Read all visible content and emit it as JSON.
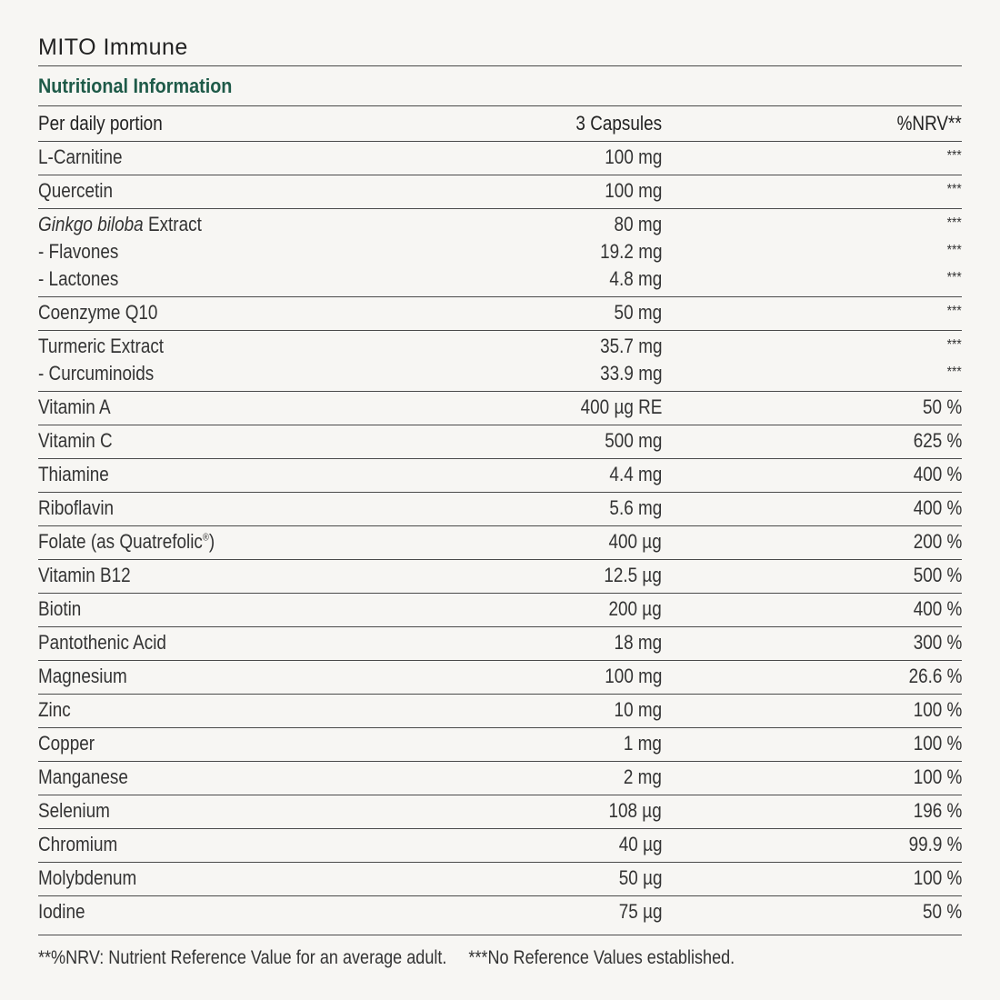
{
  "product_title": "MITO Immune",
  "section_title": "Nutritional Information",
  "header": {
    "name": "Per daily portion",
    "amount": "3 Capsules",
    "nrv": "%NRV**"
  },
  "groups": [
    {
      "lines": [
        {
          "name": "L-Carnitine",
          "amount": "100 mg",
          "nrv": "***"
        }
      ]
    },
    {
      "lines": [
        {
          "name": "Quercetin",
          "amount": "100 mg",
          "nrv": "***"
        }
      ]
    },
    {
      "lines": [
        {
          "name_italic": "Ginkgo biloba",
          "name": " Extract",
          "amount": "80 mg",
          "nrv": "***"
        },
        {
          "name": "- Flavones",
          "amount": "19.2 mg",
          "nrv": "***"
        },
        {
          "name": "- Lactones",
          "amount": "4.8 mg",
          "nrv": "***"
        }
      ]
    },
    {
      "lines": [
        {
          "name": "Coenzyme Q10",
          "amount": "50 mg",
          "nrv": "***"
        }
      ]
    },
    {
      "lines": [
        {
          "name": "Turmeric Extract",
          "amount": "35.7 mg",
          "nrv": "***"
        },
        {
          "name": "- Curcuminoids",
          "amount": "33.9 mg",
          "nrv": "***"
        }
      ]
    },
    {
      "lines": [
        {
          "name": "Vitamin A",
          "amount": "400 µg RE",
          "nrv": "50 %"
        }
      ]
    },
    {
      "lines": [
        {
          "name": "Vitamin C",
          "amount": "500 mg",
          "nrv": "625 %"
        }
      ]
    },
    {
      "lines": [
        {
          "name": "Thiamine",
          "amount": "4.4 mg",
          "nrv": "400 %"
        }
      ]
    },
    {
      "lines": [
        {
          "name": "Riboflavin",
          "amount": "5.6 mg",
          "nrv": "400 %"
        }
      ]
    },
    {
      "lines": [
        {
          "name": "Folate (as Quatrefolic",
          "name_sup": "®",
          "name_after": ")",
          "amount": "400 µg",
          "nrv": "200 %"
        }
      ]
    },
    {
      "lines": [
        {
          "name": "Vitamin B12",
          "amount": "12.5 µg",
          "nrv": "500 %"
        }
      ]
    },
    {
      "lines": [
        {
          "name": "Biotin",
          "amount": "200 µg",
          "nrv": "400 %"
        }
      ]
    },
    {
      "lines": [
        {
          "name": "Pantothenic Acid",
          "amount": "18 mg",
          "nrv": "300 %"
        }
      ]
    },
    {
      "lines": [
        {
          "name": "Magnesium",
          "amount": "100 mg",
          "nrv": "26.6 %"
        }
      ]
    },
    {
      "lines": [
        {
          "name": "Zinc",
          "amount": "10 mg",
          "nrv": "100 %"
        }
      ]
    },
    {
      "lines": [
        {
          "name": "Copper",
          "amount": "1 mg",
          "nrv": "100 %"
        }
      ]
    },
    {
      "lines": [
        {
          "name": "Manganese",
          "amount": "2 mg",
          "nrv": "100 %"
        }
      ]
    },
    {
      "lines": [
        {
          "name": "Selenium",
          "amount": "108 µg",
          "nrv": "196 %"
        }
      ]
    },
    {
      "lines": [
        {
          "name": "Chromium",
          "amount": "40 µg",
          "nrv": "99.9 %"
        }
      ]
    },
    {
      "lines": [
        {
          "name": "Molybdenum",
          "amount": "50 µg",
          "nrv": "100 %"
        }
      ]
    },
    {
      "lines": [
        {
          "name": "Iodine",
          "amount": "75 µg",
          "nrv": "50 %"
        }
      ]
    }
  ],
  "footnotes": [
    "**%NRV: Nutrient Reference Value for an average adult.",
    "***No Reference Values established."
  ],
  "colors": {
    "accent": "#1e5a48",
    "background": "#f7f6f3",
    "text": "#2b2b2b",
    "rule": "#4a4a4a"
  }
}
